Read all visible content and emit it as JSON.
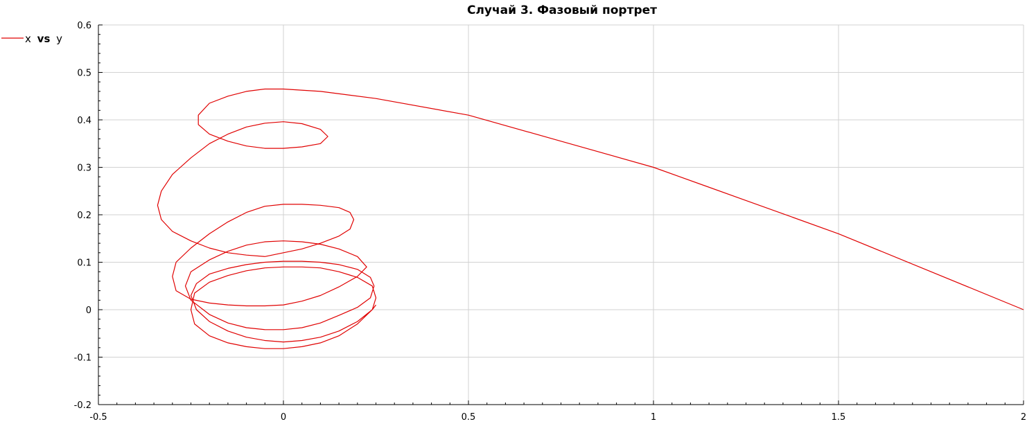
{
  "chart_data": {
    "type": "line",
    "title": "Случай 3. Фазовый портрет",
    "xlabel": "",
    "ylabel": "",
    "xlim": [
      -0.5,
      2
    ],
    "ylim": [
      -0.2,
      0.6
    ],
    "x_ticks": [
      -0.5,
      0,
      0.5,
      1,
      1.5,
      2
    ],
    "x_tick_labels": [
      "-0.5",
      "0",
      "0.5",
      "1",
      "1.5",
      "2"
    ],
    "y_ticks": [
      -0.2,
      -0.1,
      0,
      0.1,
      0.2,
      0.3,
      0.4,
      0.5,
      0.6
    ],
    "y_tick_labels": [
      "-0.2",
      "-0.1",
      "0",
      "0.1",
      "0.2",
      "0.3",
      "0.4",
      "0.5",
      "0.6"
    ],
    "grid": true,
    "legend_position": "top-left",
    "legend": {
      "prefix": "x",
      "mid": "vs",
      "suffix": "y",
      "color": "#e00000"
    },
    "series": [
      {
        "name": "x vs y",
        "color": "#e00000",
        "x": [
          2.0,
          1.75,
          1.5,
          1.25,
          1.0,
          0.75,
          0.5,
          0.25,
          0.1,
          0.0,
          -0.05,
          -0.1,
          -0.15,
          -0.2,
          -0.23,
          -0.23,
          -0.2,
          -0.15,
          -0.1,
          -0.05,
          0.0,
          0.05,
          0.1,
          0.12,
          0.1,
          0.05,
          0.0,
          -0.05,
          -0.1,
          -0.15,
          -0.2,
          -0.25,
          -0.3,
          -0.33,
          -0.34,
          -0.33,
          -0.3,
          -0.25,
          -0.2,
          -0.15,
          -0.1,
          -0.05,
          0.0,
          0.05,
          0.1,
          0.15,
          0.18,
          0.19,
          0.18,
          0.15,
          0.1,
          0.05,
          0.0,
          -0.05,
          -0.1,
          -0.15,
          -0.2,
          -0.25,
          -0.29,
          -0.3,
          -0.29,
          -0.25,
          -0.2,
          -0.15,
          -0.1,
          -0.05,
          0.0,
          0.05,
          0.1,
          0.15,
          0.2,
          0.225,
          0.2,
          0.15,
          0.1,
          0.05,
          0.0,
          -0.05,
          -0.1,
          -0.15,
          -0.2,
          -0.25,
          -0.265,
          -0.25,
          -0.2,
          -0.15,
          -0.1,
          -0.05,
          0.0,
          0.05,
          0.1,
          0.15,
          0.2,
          0.235,
          0.245,
          0.235,
          0.2,
          0.15,
          0.1,
          0.05,
          0.0,
          -0.05,
          -0.1,
          -0.15,
          -0.2,
          -0.235,
          -0.25,
          -0.235,
          -0.2,
          -0.15,
          -0.1,
          -0.05,
          0.0,
          0.05,
          0.1,
          0.15,
          0.2,
          0.24,
          0.25,
          0.24,
          0.2,
          0.15,
          0.1,
          0.05,
          0.0,
          -0.05,
          -0.1,
          -0.15,
          -0.2,
          -0.24,
          -0.25,
          -0.24,
          -0.2,
          -0.15,
          -0.1,
          -0.05,
          0.0,
          0.05,
          0.1,
          0.15,
          0.2,
          0.24,
          0.25
        ],
        "y": [
          0.0,
          0.08,
          0.16,
          0.23,
          0.3,
          0.355,
          0.41,
          0.445,
          0.46,
          0.465,
          0.465,
          0.46,
          0.45,
          0.435,
          0.41,
          0.39,
          0.37,
          0.355,
          0.345,
          0.34,
          0.34,
          0.343,
          0.35,
          0.365,
          0.38,
          0.392,
          0.396,
          0.393,
          0.385,
          0.37,
          0.35,
          0.32,
          0.285,
          0.25,
          0.22,
          0.19,
          0.165,
          0.145,
          0.13,
          0.12,
          0.115,
          0.112,
          0.12,
          0.128,
          0.14,
          0.155,
          0.17,
          0.19,
          0.205,
          0.215,
          0.22,
          0.222,
          0.222,
          0.218,
          0.205,
          0.185,
          0.16,
          0.13,
          0.1,
          0.07,
          0.04,
          0.022,
          0.014,
          0.01,
          0.008,
          0.008,
          0.01,
          0.018,
          0.03,
          0.048,
          0.07,
          0.09,
          0.112,
          0.128,
          0.138,
          0.143,
          0.145,
          0.143,
          0.136,
          0.123,
          0.105,
          0.08,
          0.05,
          0.02,
          -0.01,
          -0.028,
          -0.038,
          -0.042,
          -0.042,
          -0.038,
          -0.028,
          -0.012,
          0.005,
          0.025,
          0.05,
          0.068,
          0.085,
          0.095,
          0.1,
          0.102,
          0.102,
          0.1,
          0.095,
          0.087,
          0.075,
          0.055,
          0.03,
          0.0,
          -0.025,
          -0.045,
          -0.058,
          -0.065,
          -0.068,
          -0.065,
          -0.058,
          -0.045,
          -0.025,
          0.0,
          0.025,
          0.05,
          0.068,
          0.08,
          0.088,
          0.09,
          0.09,
          0.088,
          0.082,
          0.072,
          0.058,
          0.035,
          0.0,
          -0.03,
          -0.055,
          -0.07,
          -0.078,
          -0.082,
          -0.082,
          -0.078,
          -0.07,
          -0.055,
          -0.03,
          0.0,
          0.01
        ]
      }
    ]
  }
}
